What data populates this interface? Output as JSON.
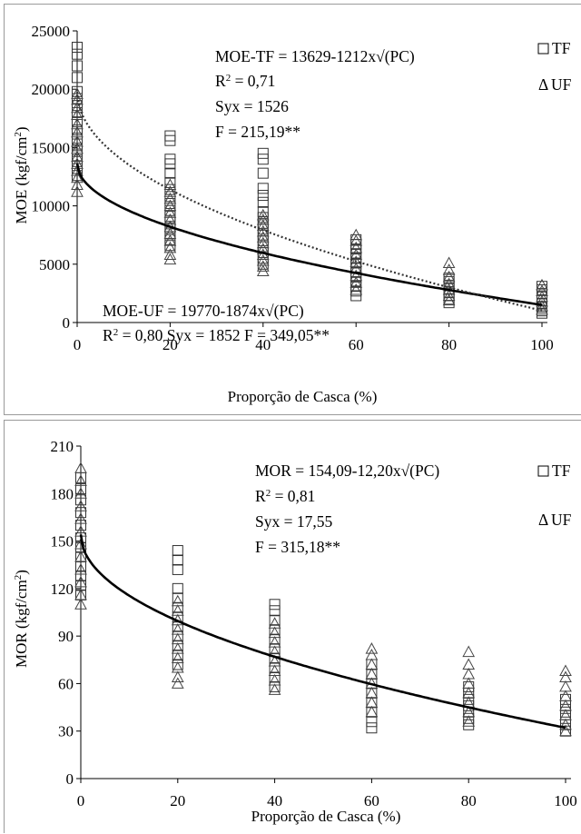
{
  "chart_data": [
    {
      "type": "scatter",
      "xlabel": "Proporção de Casca (%)",
      "ylabel": "MOE (kgf/cm²)",
      "xlim": [
        0,
        100
      ],
      "ylim": [
        0,
        25000
      ],
      "x_ticks": [
        "0",
        "20",
        "40",
        "60",
        "80",
        "100"
      ],
      "y_ticks": [
        "0",
        "5000",
        "10000",
        "15000",
        "20000",
        "25000"
      ],
      "legend": [
        "TF",
        "UF"
      ],
      "legend_position": "top-right",
      "annotations_top": [
        "MOE-TF = 13629-1212x√(PC)",
        "R² = 0,71",
        "Syx = 1526",
        "F = 215,19**"
      ],
      "annotations_bottom": [
        "MOE-UF = 19770-1874x√(PC)",
        "R² = 0,80  Syx = 1852   F = 349,05**"
      ],
      "curves": [
        {
          "series": "TF",
          "style": "solid",
          "equation": "13629-1212x√(PC)",
          "intercept": 13629,
          "slope": 1212
        },
        {
          "series": "UF",
          "style": "dotted",
          "equation": "19770-1874x√(PC)",
          "intercept": 19770,
          "slope": 1874
        }
      ],
      "series": [
        {
          "name": "TF",
          "marker": "square",
          "points": [
            [
              0,
              23600
            ],
            [
              0,
              23000
            ],
            [
              0,
              22000
            ],
            [
              0,
              21000
            ],
            [
              0,
              19800
            ],
            [
              0,
              19200
            ],
            [
              0,
              18600
            ],
            [
              0,
              18000
            ],
            [
              0,
              17200
            ],
            [
              0,
              16500
            ],
            [
              0,
              15800
            ],
            [
              0,
              15300
            ],
            [
              0,
              14800
            ],
            [
              0,
              14300
            ],
            [
              0,
              13800
            ],
            [
              0,
              13200
            ],
            [
              0,
              12600
            ],
            [
              20,
              16000
            ],
            [
              20,
              15600
            ],
            [
              20,
              14000
            ],
            [
              20,
              13600
            ],
            [
              20,
              12800
            ],
            [
              20,
              12000
            ],
            [
              20,
              11400
            ],
            [
              20,
              10800
            ],
            [
              20,
              10200
            ],
            [
              20,
              9600
            ],
            [
              20,
              9100
            ],
            [
              20,
              8600
            ],
            [
              20,
              8100
            ],
            [
              20,
              7600
            ],
            [
              20,
              7100
            ],
            [
              20,
              6600
            ],
            [
              40,
              14500
            ],
            [
              40,
              14000
            ],
            [
              40,
              12800
            ],
            [
              40,
              11500
            ],
            [
              40,
              10900
            ],
            [
              40,
              10300
            ],
            [
              40,
              9500
            ],
            [
              40,
              9000
            ],
            [
              40,
              8500
            ],
            [
              40,
              8000
            ],
            [
              40,
              7500
            ],
            [
              40,
              7000
            ],
            [
              40,
              6500
            ],
            [
              40,
              6000
            ],
            [
              40,
              5500
            ],
            [
              40,
              5000
            ],
            [
              60,
              7100
            ],
            [
              60,
              6700
            ],
            [
              60,
              6300
            ],
            [
              60,
              5900
            ],
            [
              60,
              5500
            ],
            [
              60,
              5100
            ],
            [
              60,
              4700
            ],
            [
              60,
              4300
            ],
            [
              60,
              3900
            ],
            [
              60,
              3500
            ],
            [
              60,
              3100
            ],
            [
              60,
              2700
            ],
            [
              60,
              2300
            ],
            [
              80,
              3800
            ],
            [
              80,
              3500
            ],
            [
              80,
              3200
            ],
            [
              80,
              2900
            ],
            [
              80,
              2600
            ],
            [
              80,
              2300
            ],
            [
              80,
              2000
            ],
            [
              80,
              1700
            ],
            [
              100,
              3100
            ],
            [
              100,
              2800
            ],
            [
              100,
              2500
            ],
            [
              100,
              2200
            ],
            [
              100,
              1900
            ],
            [
              100,
              1600
            ],
            [
              100,
              1300
            ],
            [
              100,
              1000
            ],
            [
              100,
              800
            ]
          ]
        },
        {
          "name": "UF",
          "marker": "triangle",
          "points": [
            [
              0,
              19600
            ],
            [
              0,
              19100
            ],
            [
              0,
              18400
            ],
            [
              0,
              17800
            ],
            [
              0,
              17000
            ],
            [
              0,
              16300
            ],
            [
              0,
              15500
            ],
            [
              0,
              14900
            ],
            [
              0,
              14200
            ],
            [
              0,
              13600
            ],
            [
              0,
              13000
            ],
            [
              0,
              12400
            ],
            [
              0,
              11800
            ],
            [
              0,
              11200
            ],
            [
              20,
              11800
            ],
            [
              20,
              11200
            ],
            [
              20,
              10600
            ],
            [
              20,
              10000
            ],
            [
              20,
              9400
            ],
            [
              20,
              8800
            ],
            [
              20,
              8200
            ],
            [
              20,
              7600
            ],
            [
              20,
              7000
            ],
            [
              20,
              6400
            ],
            [
              20,
              5800
            ],
            [
              20,
              5400
            ],
            [
              40,
              9200
            ],
            [
              40,
              8800
            ],
            [
              40,
              8300
            ],
            [
              40,
              7800
            ],
            [
              40,
              7300
            ],
            [
              40,
              6800
            ],
            [
              40,
              6300
            ],
            [
              40,
              5800
            ],
            [
              40,
              5300
            ],
            [
              40,
              4800
            ],
            [
              40,
              4400
            ],
            [
              60,
              7500
            ],
            [
              60,
              7000
            ],
            [
              60,
              6400
            ],
            [
              60,
              5800
            ],
            [
              60,
              5200
            ],
            [
              60,
              4600
            ],
            [
              60,
              4000
            ],
            [
              60,
              3400
            ],
            [
              60,
              2800
            ],
            [
              80,
              5100
            ],
            [
              80,
              4500
            ],
            [
              80,
              3900
            ],
            [
              80,
              3300
            ],
            [
              80,
              2800
            ],
            [
              80,
              2300
            ],
            [
              80,
              1900
            ],
            [
              100,
              3200
            ],
            [
              100,
              2700
            ],
            [
              100,
              2200
            ],
            [
              100,
              1800
            ],
            [
              100,
              1400
            ],
            [
              100,
              1100
            ]
          ]
        }
      ]
    },
    {
      "type": "scatter",
      "xlabel": "Proporção de Casca (%)",
      "ylabel": "MOR (kgf/cm²)",
      "xlim": [
        0,
        100
      ],
      "ylim": [
        0,
        210
      ],
      "x_ticks": [
        "0",
        "20",
        "40",
        "60",
        "80",
        "100"
      ],
      "y_ticks": [
        "0",
        "30",
        "60",
        "90",
        "120",
        "150",
        "180",
        "210"
      ],
      "legend": [
        "TF",
        "UF"
      ],
      "legend_position": "top-right",
      "annotations_top": [
        "MOR = 154,09-12,20x√(PC)",
        "R² = 0,81",
        "Syx = 17,55",
        "F = 315,18**"
      ],
      "curves": [
        {
          "series": "all",
          "style": "solid",
          "equation": "154,09-12,20x√(PC)",
          "intercept": 154.09,
          "slope": 12.2
        }
      ],
      "series": [
        {
          "name": "TF",
          "marker": "square",
          "points": [
            [
              0,
              190
            ],
            [
              0,
              183
            ],
            [
              0,
              176
            ],
            [
              0,
              168
            ],
            [
              0,
              160
            ],
            [
              0,
              152
            ],
            [
              0,
              146
            ],
            [
              0,
              140
            ],
            [
              0,
              134
            ],
            [
              0,
              128
            ],
            [
              0,
              122
            ],
            [
              0,
              116
            ],
            [
              20,
              144
            ],
            [
              20,
              138
            ],
            [
              20,
              132
            ],
            [
              20,
              120
            ],
            [
              20,
              114
            ],
            [
              20,
              108
            ],
            [
              20,
              102
            ],
            [
              20,
              96
            ],
            [
              20,
              90
            ],
            [
              20,
              84
            ],
            [
              20,
              78
            ],
            [
              20,
              72
            ],
            [
              40,
              110
            ],
            [
              40,
              106
            ],
            [
              40,
              100
            ],
            [
              40,
              94
            ],
            [
              40,
              88
            ],
            [
              40,
              82
            ],
            [
              40,
              76
            ],
            [
              40,
              70
            ],
            [
              40,
              64
            ],
            [
              40,
              58
            ],
            [
              60,
              72
            ],
            [
              60,
              66
            ],
            [
              60,
              60
            ],
            [
              60,
              54
            ],
            [
              60,
              48
            ],
            [
              60,
              42
            ],
            [
              60,
              36
            ],
            [
              60,
              32
            ],
            [
              80,
              58
            ],
            [
              80,
              54
            ],
            [
              80,
              50
            ],
            [
              80,
              46
            ],
            [
              80,
              42
            ],
            [
              80,
              38
            ],
            [
              80,
              34
            ],
            [
              100,
              50
            ],
            [
              100,
              46
            ],
            [
              100,
              42
            ],
            [
              100,
              38
            ],
            [
              100,
              34
            ],
            [
              100,
              30
            ]
          ]
        },
        {
          "name": "UF",
          "marker": "triangle",
          "points": [
            [
              0,
              196
            ],
            [
              0,
              188
            ],
            [
              0,
              180
            ],
            [
              0,
              172
            ],
            [
              0,
              164
            ],
            [
              0,
              156
            ],
            [
              0,
              148
            ],
            [
              0,
              140
            ],
            [
              0,
              132
            ],
            [
              0,
              124
            ],
            [
              0,
              116
            ],
            [
              0,
              110
            ],
            [
              20,
              112
            ],
            [
              20,
              106
            ],
            [
              20,
              100
            ],
            [
              20,
              94
            ],
            [
              20,
              88
            ],
            [
              20,
              82
            ],
            [
              20,
              76
            ],
            [
              20,
              70
            ],
            [
              20,
              64
            ],
            [
              20,
              60
            ],
            [
              40,
              98
            ],
            [
              40,
              92
            ],
            [
              40,
              86
            ],
            [
              40,
              80
            ],
            [
              40,
              74
            ],
            [
              40,
              68
            ],
            [
              40,
              62
            ],
            [
              40,
              56
            ],
            [
              60,
              82
            ],
            [
              60,
              78
            ],
            [
              60,
              72
            ],
            [
              60,
              66
            ],
            [
              60,
              60
            ],
            [
              60,
              54
            ],
            [
              60,
              48
            ],
            [
              60,
              42
            ],
            [
              80,
              80
            ],
            [
              80,
              72
            ],
            [
              80,
              66
            ],
            [
              80,
              60
            ],
            [
              80,
              54
            ],
            [
              80,
              48
            ],
            [
              80,
              42
            ],
            [
              80,
              36
            ],
            [
              100,
              68
            ],
            [
              100,
              64
            ],
            [
              100,
              58
            ],
            [
              100,
              52
            ],
            [
              100,
              46
            ],
            [
              100,
              40
            ],
            [
              100,
              34
            ],
            [
              100,
              30
            ]
          ]
        }
      ]
    }
  ]
}
